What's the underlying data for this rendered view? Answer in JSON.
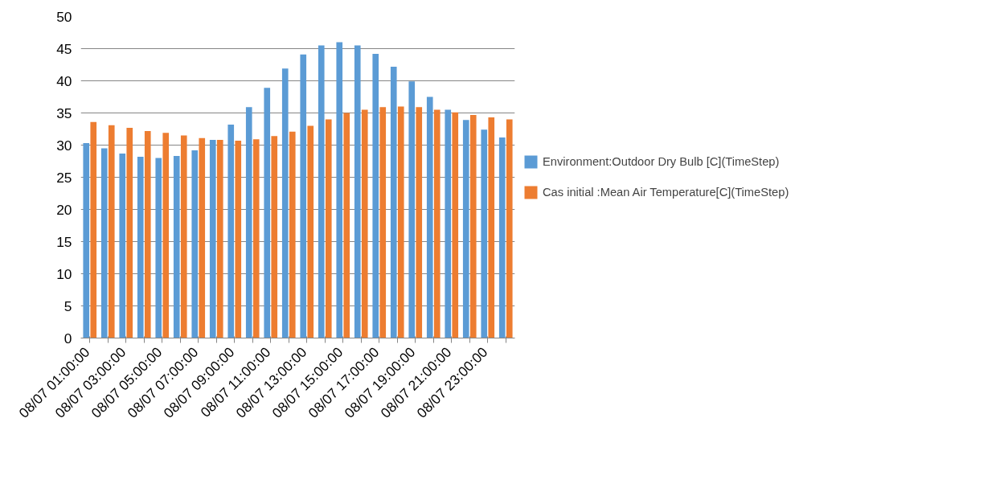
{
  "chart_data": {
    "type": "bar",
    "categories": [
      "08/07  01:00:00",
      null,
      "08/07  03:00:00",
      null,
      "08/07  05:00:00",
      null,
      "08/07  07:00:00",
      null,
      "08/07  09:00:00",
      null,
      "08/07  11:00:00",
      null,
      "08/07  13:00:00",
      null,
      "08/07  15:00:00",
      null,
      "08/07  17:00:00",
      null,
      "08/07  19:00:00",
      null,
      "08/07  21:00:00",
      null,
      "08/07  23:00:00",
      null
    ],
    "series": [
      {
        "name": "Environment:Outdoor Dry Bulb [C](TimeStep)",
        "color": "#5b9bd5",
        "values": [
          30.3,
          29.5,
          28.7,
          28.2,
          28.0,
          28.3,
          29.2,
          30.8,
          33.2,
          35.9,
          38.9,
          41.9,
          44.1,
          45.5,
          46.0,
          45.5,
          44.2,
          42.2,
          39.9,
          37.5,
          35.5,
          33.9,
          32.4,
          31.2
        ]
      },
      {
        "name": "Cas initial :Mean Air Temperature[C](TimeStep)",
        "color": "#ed7d31",
        "values": [
          33.6,
          33.1,
          32.7,
          32.2,
          31.9,
          31.5,
          31.1,
          30.8,
          30.7,
          30.9,
          31.4,
          32.1,
          33.0,
          34.0,
          35.0,
          35.5,
          35.9,
          36.0,
          35.9,
          35.5,
          35.1,
          34.7,
          34.3,
          34.0
        ]
      }
    ],
    "ylim": [
      0,
      50
    ],
    "yticks": [
      0,
      5,
      10,
      15,
      20,
      25,
      30,
      35,
      40,
      45,
      50
    ],
    "grid": "y",
    "legend": "right"
  }
}
